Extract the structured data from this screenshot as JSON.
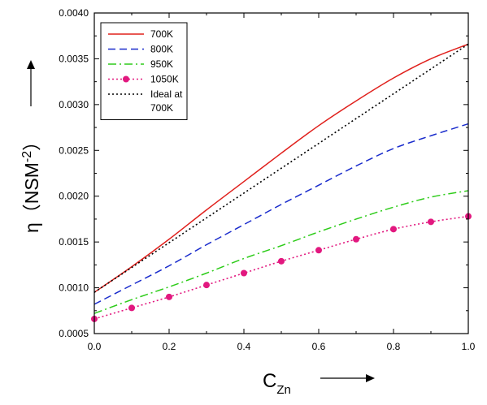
{
  "chart_data": {
    "type": "line",
    "xlabel": "C",
    "xlabel_sub": "Zn",
    "ylabel": "η（NSM",
    "ylabel_sup": "-2",
    "ylabel_end": "）",
    "xlim": [
      0.0,
      1.0
    ],
    "ylim": [
      0.0005,
      0.004
    ],
    "x_ticks": [
      0.0,
      0.2,
      0.4,
      0.6,
      0.8,
      1.0
    ],
    "x_tick_labels": [
      "0.0",
      "0.2",
      "0.4",
      "0.6",
      "0.8",
      "1.0"
    ],
    "y_ticks": [
      0.0005,
      0.001,
      0.0015,
      0.002,
      0.0025,
      0.003,
      0.0035,
      0.004
    ],
    "y_tick_labels": [
      "0.0005",
      "0.0010",
      "0.0015",
      "0.0020",
      "0.0025",
      "0.0030",
      "0.0035",
      "0.0040"
    ],
    "grid": false,
    "legend_position": "top-left",
    "series": [
      {
        "name": "700K",
        "color": "#e0201c",
        "style": "solid",
        "marker": "none",
        "x": [
          0.0,
          0.1,
          0.2,
          0.3,
          0.4,
          0.5,
          0.6,
          0.7,
          0.8,
          0.9,
          1.0
        ],
        "y": [
          0.00095,
          0.00123,
          0.00153,
          0.00185,
          0.00216,
          0.00247,
          0.00277,
          0.00304,
          0.00329,
          0.0035,
          0.00366
        ]
      },
      {
        "name": "800K",
        "color": "#1a2ccc",
        "style": "dashed",
        "marker": "none",
        "x": [
          0.0,
          0.1,
          0.2,
          0.3,
          0.4,
          0.5,
          0.6,
          0.7,
          0.8,
          0.9,
          1.0
        ],
        "y": [
          0.00082,
          0.00103,
          0.00124,
          0.00147,
          0.00169,
          0.00191,
          0.00212,
          0.00233,
          0.00252,
          0.00266,
          0.00279
        ]
      },
      {
        "name": "950K",
        "color": "#2ecc1a",
        "style": "dashdot",
        "marker": "none",
        "x": [
          0.0,
          0.1,
          0.2,
          0.3,
          0.4,
          0.5,
          0.6,
          0.7,
          0.8,
          0.9,
          1.0
        ],
        "y": [
          0.00072,
          0.00087,
          0.00101,
          0.00116,
          0.00132,
          0.00146,
          0.00161,
          0.00175,
          0.00188,
          0.00199,
          0.00206
        ]
      },
      {
        "name": "1050K",
        "color": "#e2187f",
        "style": "dotted",
        "marker": "circle",
        "x": [
          0.0,
          0.1,
          0.2,
          0.3,
          0.4,
          0.5,
          0.6,
          0.7,
          0.8,
          0.9,
          1.0
        ],
        "y": [
          0.00066,
          0.00078,
          0.0009,
          0.00103,
          0.00116,
          0.00129,
          0.00141,
          0.00153,
          0.00164,
          0.00172,
          0.00178
        ]
      },
      {
        "name": "Ideal at 700K",
        "name_lines": [
          "Ideal at",
          "700K"
        ],
        "color": "#000000",
        "style": "dotted",
        "marker": "none",
        "x": [
          0.0,
          1.0
        ],
        "y": [
          0.00095,
          0.00366
        ]
      }
    ]
  }
}
